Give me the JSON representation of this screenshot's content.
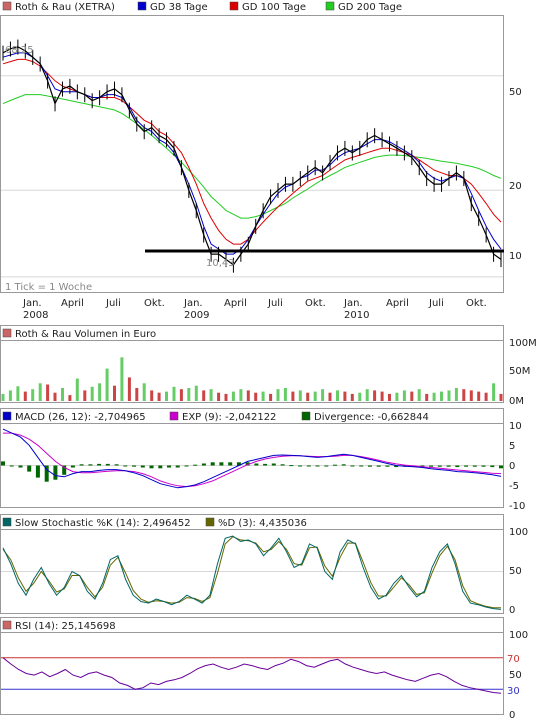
{
  "colors": {
    "price": "#000000",
    "gd38": "#0000cc",
    "gd100": "#dd0000",
    "gd200": "#22cc22",
    "vol_up": "#66cc66",
    "vol_down": "#cc4444",
    "macd": "#0000cc",
    "exp": "#cc00cc",
    "divergence": "#006600",
    "stoch_k": "#006666",
    "stoch_d": "#666600",
    "rsi": "#660099",
    "rsi_upper": "#cc3333",
    "rsi_lower": "#3333cc",
    "support_line": "#000000",
    "frame": "#999999",
    "grid": "#d8d8d8"
  },
  "price_chart": {
    "legend": [
      {
        "label": "Roth & Rau (XETRA)",
        "color": "#cc6666"
      },
      {
        "label": "GD 38 Tage",
        "color": "#0000cc"
      },
      {
        "label": "GD 100 Tage",
        "color": "#dd0000"
      },
      {
        "label": "GD 200 Tage",
        "color": "#22cc22"
      }
    ],
    "high_label": "68,25",
    "low_label": "10,43",
    "tick_note": "1 Tick = 1 Woche",
    "y_ticks": [
      "50",
      "20",
      "10"
    ],
    "x_ticks": [
      {
        "label": "Jan.",
        "year": "2008"
      },
      {
        "label": "April",
        "year": ""
      },
      {
        "label": "Juli",
        "year": ""
      },
      {
        "label": "Okt.",
        "year": ""
      },
      {
        "label": "Jan.",
        "year": "2009"
      },
      {
        "label": "April",
        "year": ""
      },
      {
        "label": "Juli",
        "year": ""
      },
      {
        "label": "Okt.",
        "year": ""
      },
      {
        "label": "Jan.",
        "year": "2010"
      },
      {
        "label": "April",
        "year": ""
      },
      {
        "label": "Juli",
        "year": ""
      },
      {
        "label": "Okt.",
        "year": ""
      }
    ]
  },
  "volume_chart": {
    "legend": "Roth & Rau Volumen in Euro",
    "y_ticks": [
      "100M",
      "50M",
      "0M"
    ]
  },
  "macd_chart": {
    "legend": [
      {
        "label": "MACD (26, 12): -2,704965",
        "color": "#0000cc"
      },
      {
        "label": "EXP (9): -2,042122",
        "color": "#cc00cc"
      },
      {
        "label": "Divergence: -0,662844",
        "color": "#006600"
      }
    ],
    "y_ticks": [
      "10",
      "5",
      "0",
      "-5",
      "-10"
    ]
  },
  "stoch_chart": {
    "legend": [
      {
        "label": "Slow Stochastic %K (14): 2,496452",
        "color": "#006666"
      },
      {
        "label": "%D (3): 4,435036",
        "color": "#666600"
      }
    ],
    "y_ticks": [
      "100",
      "50",
      "0"
    ]
  },
  "rsi_chart": {
    "legend": [
      {
        "label": "RSI (14): 25,145698",
        "color": "#cc6666"
      }
    ],
    "y_ticks": [
      "100",
      "70",
      "50",
      "30",
      "0"
    ]
  },
  "chart_data": [
    {
      "type": "line",
      "title": "Roth & Rau (XETRA)",
      "y_scale": "log",
      "ylim": [
        9,
        80
      ],
      "x_ticks": [
        "Jan. 2008",
        "April",
        "Juli",
        "Okt.",
        "Jan. 2009",
        "April",
        "Juli",
        "Okt.",
        "Jan. 2010",
        "April",
        "Juli",
        "Okt."
      ],
      "series": [
        {
          "name": "Roth & Rau (XETRA)",
          "values": [
            60,
            62,
            63,
            61,
            58,
            55,
            48,
            40,
            45,
            46,
            44,
            43,
            41,
            42,
            44,
            45,
            43,
            38,
            34,
            32,
            33,
            31,
            30,
            28,
            24,
            20,
            17,
            14,
            12,
            12,
            11.5,
            11,
            12,
            13,
            15,
            17,
            19,
            20,
            21,
            21,
            22,
            23,
            24,
            23,
            25,
            27,
            28,
            27,
            28,
            30,
            31,
            30,
            29,
            28,
            27,
            26,
            24,
            22,
            21,
            21,
            22,
            23,
            22,
            18,
            16,
            14,
            12,
            11.5
          ]
        },
        {
          "name": "GD 38 Tage",
          "values": [
            58,
            59,
            60,
            60,
            58,
            55,
            50,
            45,
            44,
            44,
            44,
            43,
            42,
            42,
            43,
            43,
            42,
            39,
            35,
            33,
            32,
            30,
            29,
            27,
            24,
            21,
            18,
            15,
            13,
            12.5,
            12,
            12,
            12.5,
            13.5,
            15,
            16.5,
            18,
            19.5,
            20.5,
            21,
            22,
            22.5,
            23.5,
            23.5,
            24.5,
            26,
            27,
            27.5,
            28,
            29,
            30,
            30,
            29.5,
            28.5,
            27.5,
            26.5,
            25,
            23,
            22,
            21.5,
            22,
            22.5,
            22,
            19.5,
            17,
            15,
            13.5,
            12.5
          ]
        },
        {
          "name": "GD 100 Tage",
          "values": [
            55,
            56,
            57,
            57,
            56,
            54,
            51,
            48,
            46,
            45,
            44,
            43,
            42,
            42,
            42,
            42,
            41,
            39,
            37,
            35,
            34,
            32,
            31,
            29,
            27,
            24,
            21,
            18,
            16,
            14.5,
            13.5,
            13,
            13,
            13.5,
            14.5,
            15.5,
            16.5,
            17.5,
            18.5,
            19.5,
            20.5,
            21.5,
            22,
            22.5,
            23.5,
            24.5,
            25.5,
            26,
            26.5,
            27,
            27.5,
            28,
            28,
            27.5,
            27,
            26.5,
            25.5,
            24.5,
            23.5,
            23,
            22.5,
            22.5,
            22,
            21,
            19.5,
            18,
            16.5,
            15.5
          ]
        },
        {
          "name": "GD 200 Tage",
          "values": [
            40,
            41,
            42,
            43,
            43,
            43,
            42.5,
            42,
            41.5,
            41,
            40.5,
            40,
            39.5,
            39,
            38.5,
            38,
            37,
            35.5,
            34,
            32.5,
            31,
            29.5,
            28,
            26.5,
            25,
            23.5,
            22,
            20.5,
            19,
            18,
            17,
            16.5,
            16,
            16,
            16.2,
            16.5,
            17,
            17.5,
            18,
            18.8,
            19.5,
            20.2,
            21,
            21.8,
            22.5,
            23.2,
            24,
            24.5,
            25,
            25.5,
            26,
            26.3,
            26.5,
            26.5,
            26.4,
            26.2,
            26,
            25.8,
            25.5,
            25.2,
            25,
            24.8,
            24.5,
            24.2,
            23.8,
            23.2,
            22.5,
            22
          ]
        }
      ],
      "support_level": 10.43,
      "high": 68.25,
      "low": 10.43
    },
    {
      "type": "bar",
      "title": "Roth & Rau Volumen in Euro",
      "ylim": [
        0,
        100
      ],
      "unit": "M",
      "values": [
        12,
        18,
        25,
        16,
        20,
        30,
        28,
        14,
        22,
        10,
        38,
        18,
        24,
        30,
        55,
        26,
        74,
        40,
        22,
        30,
        18,
        14,
        16,
        24,
        20,
        22,
        26,
        18,
        20,
        14,
        12,
        16,
        20,
        18,
        14,
        16,
        12,
        20,
        22,
        16,
        18,
        14,
        16,
        20,
        14,
        18,
        16,
        12,
        14,
        20,
        18,
        16,
        12,
        14,
        18,
        16,
        20,
        12,
        14,
        16,
        18,
        22,
        20,
        18,
        16,
        14,
        30,
        12
      ]
    },
    {
      "type": "line",
      "title": "MACD",
      "ylim": [
        -10,
        10
      ],
      "series": [
        {
          "name": "MACD (26, 12)",
          "values": [
            9,
            8,
            7,
            5,
            2,
            -1,
            -2.5,
            -2.8,
            -2,
            -1.5,
            -1.5,
            -1.2,
            -1,
            -1,
            -1.3,
            -1.8,
            -2.5,
            -3.5,
            -4.5,
            -5,
            -5.5,
            -5.2,
            -4.8,
            -4,
            -3,
            -2,
            -1,
            0,
            1,
            1.5,
            2,
            2.5,
            2.6,
            2.5,
            2.4,
            2.2,
            2,
            2.2,
            2.5,
            2.8,
            2.5,
            2,
            1.5,
            1,
            0.5,
            0,
            -0.2,
            -0.3,
            -0.5,
            -0.8,
            -1,
            -1.2,
            -1.5,
            -1.6,
            -1.8,
            -2,
            -2.3,
            -2.7
          ]
        },
        {
          "name": "EXP (9)",
          "values": [
            8,
            8,
            7.5,
            6.5,
            5,
            3,
            1,
            -0.5,
            -1.5,
            -1.8,
            -1.8,
            -1.6,
            -1.4,
            -1.3,
            -1.3,
            -1.5,
            -2,
            -2.8,
            -3.8,
            -4.5,
            -5,
            -5.2,
            -5,
            -4.5,
            -3.8,
            -2.8,
            -1.8,
            -0.8,
            0.2,
            1,
            1.6,
            2,
            2.3,
            2.4,
            2.4,
            2.3,
            2.2,
            2.2,
            2.3,
            2.5,
            2.5,
            2.2,
            1.8,
            1.3,
            0.8,
            0.4,
            0.1,
            -0.1,
            -0.3,
            -0.5,
            -0.7,
            -0.9,
            -1.1,
            -1.3,
            -1.5,
            -1.7,
            -1.9,
            -2
          ]
        },
        {
          "name": "Divergence",
          "values": [
            1,
            0,
            -0.5,
            -1.5,
            -3,
            -4,
            -3.5,
            -2.3,
            -0.5,
            0.3,
            0.3,
            0.4,
            0.4,
            0.3,
            0,
            -0.3,
            -0.5,
            -0.7,
            -0.7,
            -0.5,
            -0.5,
            0,
            0.2,
            0.5,
            0.8,
            0.8,
            0.8,
            0.8,
            0.8,
            0.5,
            0.4,
            0.5,
            0.3,
            0.1,
            0,
            -0.1,
            -0.2,
            0,
            0.2,
            0.3,
            0,
            -0.2,
            -0.3,
            -0.3,
            -0.3,
            -0.4,
            -0.3,
            -0.2,
            -0.2,
            -0.3,
            -0.3,
            -0.3,
            -0.4,
            -0.3,
            -0.3,
            -0.3,
            -0.4,
            -0.7
          ]
        }
      ]
    },
    {
      "type": "line",
      "title": "Slow Stochastic",
      "ylim": [
        0,
        100
      ],
      "series": [
        {
          "name": "Slow Stochastic %K (14)",
          "values": [
            80,
            60,
            35,
            20,
            40,
            55,
            35,
            20,
            30,
            50,
            45,
            25,
            15,
            35,
            65,
            70,
            40,
            20,
            12,
            10,
            15,
            12,
            8,
            12,
            20,
            15,
            10,
            20,
            60,
            92,
            95,
            88,
            90,
            85,
            70,
            80,
            92,
            75,
            55,
            60,
            85,
            80,
            50,
            40,
            75,
            90,
            85,
            55,
            30,
            15,
            20,
            35,
            45,
            30,
            18,
            25,
            55,
            75,
            85,
            60,
            25,
            10,
            8,
            5,
            3,
            2
          ]
        },
        {
          "name": "%D (3)",
          "values": [
            78,
            65,
            42,
            25,
            35,
            50,
            38,
            24,
            28,
            45,
            45,
            30,
            18,
            30,
            58,
            68,
            48,
            26,
            15,
            11,
            13,
            12,
            10,
            11,
            17,
            16,
            12,
            17,
            48,
            85,
            94,
            90,
            89,
            86,
            75,
            78,
            88,
            78,
            60,
            58,
            80,
            81,
            57,
            44,
            68,
            86,
            86,
            62,
            36,
            19,
            19,
            30,
            42,
            33,
            21,
            23,
            48,
            70,
            82,
            65,
            32,
            13,
            9,
            6,
            4,
            4
          ]
        }
      ]
    },
    {
      "type": "line",
      "title": "RSI",
      "ylim": [
        0,
        100
      ],
      "series": [
        {
          "name": "RSI (14)",
          "values": [
            70,
            62,
            55,
            50,
            48,
            52,
            46,
            50,
            55,
            48,
            45,
            50,
            52,
            48,
            45,
            38,
            35,
            30,
            32,
            38,
            36,
            40,
            42,
            45,
            50,
            56,
            60,
            62,
            58,
            55,
            58,
            62,
            60,
            57,
            55,
            60,
            63,
            68,
            65,
            60,
            58,
            62,
            66,
            68,
            62,
            58,
            55,
            52,
            50,
            52,
            48,
            45,
            42,
            40,
            44,
            48,
            50,
            46,
            40,
            35,
            32,
            30,
            28,
            26,
            25
          ]
        }
      ],
      "reference_lines": [
        70,
        30
      ]
    }
  ]
}
